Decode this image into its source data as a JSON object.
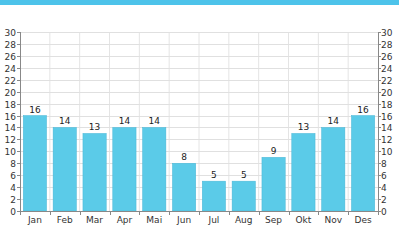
{
  "chart_data": {
    "type": "bar",
    "categories": [
      "Jan",
      "Feb",
      "Mar",
      "Apr",
      "Mai",
      "Jun",
      "Jul",
      "Aug",
      "Sep",
      "Okt",
      "Nov",
      "Des"
    ],
    "values": [
      16,
      14,
      13,
      14,
      14,
      8,
      5,
      5,
      9,
      13,
      14,
      16
    ],
    "color": "#5bcbe8",
    "ylim": [
      0,
      30
    ],
    "yticks": [
      0,
      2,
      4,
      6,
      8,
      10,
      12,
      14,
      16,
      18,
      20,
      22,
      24,
      26,
      28,
      30
    ],
    "grid": true,
    "data_labels": true
  }
}
